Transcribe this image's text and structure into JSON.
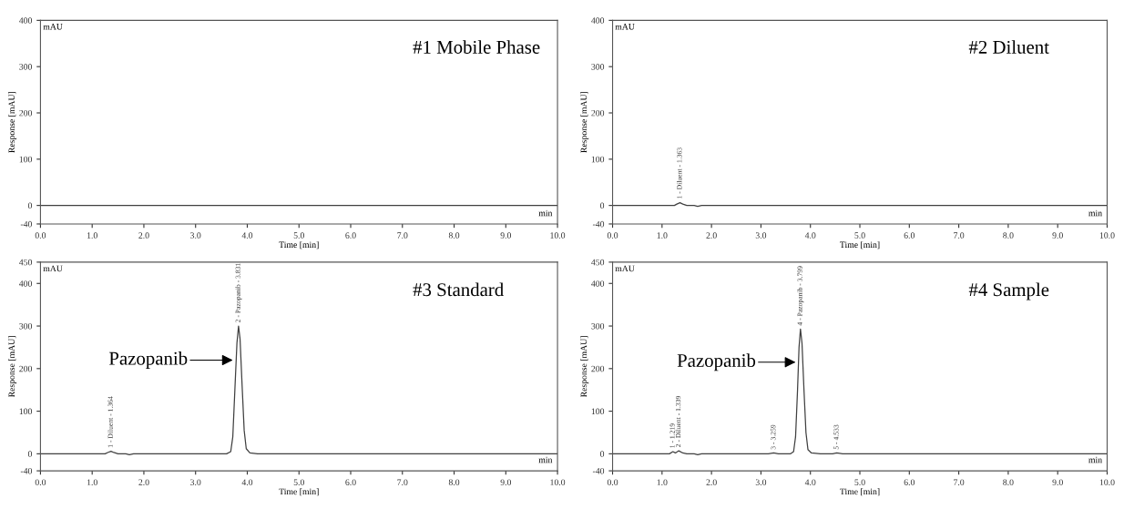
{
  "chart_data": [
    {
      "type": "line",
      "title": "#1 Mobile Phase",
      "xlabel": "Time [min]",
      "ylabel": "Response [mAU]",
      "xlim": [
        0,
        10
      ],
      "ylim": [
        -40,
        400
      ],
      "xticks": [
        {
          "value": 0,
          "label": "0.0"
        },
        {
          "value": 1,
          "label": "1.0"
        },
        {
          "value": 2,
          "label": "2.0"
        },
        {
          "value": 3,
          "label": "3.0"
        },
        {
          "value": 4,
          "label": "4.0"
        },
        {
          "value": 5,
          "label": "5.0"
        },
        {
          "value": 6,
          "label": "6.0"
        },
        {
          "value": 7,
          "label": "7.0"
        },
        {
          "value": 8,
          "label": "8.0"
        },
        {
          "value": 9,
          "label": "9.0"
        },
        {
          "value": 10,
          "label": "10.0"
        }
      ],
      "yticks": [
        -40,
        0,
        100,
        200,
        300,
        400
      ],
      "grid": false,
      "legend": false,
      "series": [
        {
          "color": "#404040",
          "x": [
            0,
            10
          ],
          "values": [
            0,
            0
          ]
        }
      ],
      "annotations": [
        "mAU",
        "min"
      ]
    },
    {
      "type": "line",
      "title": "#2 Diluent",
      "xlabel": "Time [min]",
      "ylabel": "Response [mAU]",
      "xlim": [
        0,
        10
      ],
      "ylim": [
        -40,
        400
      ],
      "xticks": [
        {
          "value": 0,
          "label": "0.0"
        },
        {
          "value": 1,
          "label": "1.0"
        },
        {
          "value": 2,
          "label": "2.0"
        },
        {
          "value": 3,
          "label": "3.0"
        },
        {
          "value": 4,
          "label": "4.0"
        },
        {
          "value": 5,
          "label": "5.0"
        },
        {
          "value": 6,
          "label": "6.0"
        },
        {
          "value": 7,
          "label": "7.0"
        },
        {
          "value": 8,
          "label": "8.0"
        },
        {
          "value": 9,
          "label": "9.0"
        },
        {
          "value": 10,
          "label": "10.0"
        }
      ],
      "yticks": [
        -40,
        0,
        100,
        200,
        300,
        400
      ],
      "grid": false,
      "legend": false,
      "series": [
        {
          "color": "#404040",
          "x": [
            0,
            1.25,
            1.3,
            1.363,
            1.42,
            1.5,
            1.65,
            1.72,
            1.8,
            10
          ],
          "values": [
            0,
            0,
            3,
            6,
            3,
            0,
            0,
            -2,
            0,
            0
          ]
        }
      ],
      "annotations": [
        "mAU",
        "min",
        {
          "text": "1 - Diluent - 1.363",
          "x": 1.363,
          "y": 6
        }
      ]
    },
    {
      "type": "line",
      "title": "#3 Standard",
      "xlabel": "Time [min]",
      "ylabel": "Response [mAU]",
      "xlim": [
        0,
        10
      ],
      "ylim": [
        -40,
        450
      ],
      "xticks": [
        {
          "value": 0,
          "label": "0.0"
        },
        {
          "value": 1,
          "label": "1.0"
        },
        {
          "value": 2,
          "label": "2.0"
        },
        {
          "value": 3,
          "label": "3.0"
        },
        {
          "value": 4,
          "label": "4.0"
        },
        {
          "value": 5,
          "label": "5.0"
        },
        {
          "value": 6,
          "label": "6.0"
        },
        {
          "value": 7,
          "label": "7.0"
        },
        {
          "value": 8,
          "label": "8.0"
        },
        {
          "value": 9,
          "label": "9.0"
        },
        {
          "value": 10,
          "label": "10.0"
        }
      ],
      "yticks": [
        -40,
        0,
        100,
        200,
        300,
        400,
        450
      ],
      "grid": false,
      "legend": false,
      "series": [
        {
          "color": "#404040",
          "x": [
            0,
            1.25,
            1.3,
            1.364,
            1.42,
            1.5,
            1.65,
            1.72,
            1.8,
            3.6,
            3.68,
            3.72,
            3.76,
            3.8,
            3.831,
            3.86,
            3.9,
            3.94,
            3.98,
            4.05,
            4.2,
            10
          ],
          "values": [
            0,
            0,
            3,
            6,
            3,
            0,
            0,
            -2,
            0,
            0,
            5,
            40,
            150,
            260,
            300,
            270,
            160,
            55,
            12,
            2,
            0,
            0
          ]
        }
      ],
      "annotations": [
        "mAU",
        "min",
        {
          "text": "1 - Diluent - 1.364",
          "x": 1.364,
          "y": 6
        },
        {
          "text": "2 - Pazopanib - 3.831",
          "x": 3.831,
          "y": 300
        },
        {
          "text": "Pazopanib",
          "x": 3.72,
          "y": 220
        }
      ]
    },
    {
      "type": "line",
      "title": "#4 Sample",
      "xlabel": "Time [min]",
      "ylabel": "Response [mAU]",
      "xlim": [
        0,
        10
      ],
      "ylim": [
        -40,
        450
      ],
      "xticks": [
        {
          "value": 0,
          "label": "0.0"
        },
        {
          "value": 1,
          "label": "1.0"
        },
        {
          "value": 2,
          "label": "2.0"
        },
        {
          "value": 3,
          "label": "3.0"
        },
        {
          "value": 4,
          "label": "4.0"
        },
        {
          "value": 5,
          "label": "5.0"
        },
        {
          "value": 6,
          "label": "6.0"
        },
        {
          "value": 7,
          "label": "7.0"
        },
        {
          "value": 8,
          "label": "8.0"
        },
        {
          "value": 9,
          "label": "9.0"
        },
        {
          "value": 10,
          "label": "10.0"
        }
      ],
      "yticks": [
        -40,
        0,
        100,
        200,
        300,
        400,
        450
      ],
      "grid": false,
      "legend": false,
      "series": [
        {
          "color": "#404040",
          "x": [
            0,
            1.15,
            1.219,
            1.27,
            1.339,
            1.42,
            1.5,
            1.65,
            1.72,
            1.8,
            3.15,
            3.259,
            3.35,
            3.6,
            3.66,
            3.7,
            3.74,
            3.77,
            3.799,
            3.83,
            3.87,
            3.91,
            3.95,
            4.02,
            4.2,
            4.45,
            4.533,
            4.65,
            10
          ],
          "values": [
            0,
            0,
            5,
            2,
            7,
            2,
            0,
            0,
            -2,
            0,
            0,
            2,
            0,
            0,
            5,
            40,
            150,
            250,
            293,
            260,
            150,
            50,
            10,
            2,
            0,
            0,
            2,
            0,
            0
          ]
        }
      ],
      "annotations": [
        "mAU",
        "min",
        {
          "text": "1 - 1.219",
          "x": 1.219,
          "y": 5
        },
        {
          "text": "2 - Diluent - 1.339",
          "x": 1.339,
          "y": 7
        },
        {
          "text": "3 - 3.259",
          "x": 3.259,
          "y": 2
        },
        {
          "text": "4 - Pazopanib - 3.799",
          "x": 3.799,
          "y": 293
        },
        {
          "text": "5 - 4.533",
          "x": 4.533,
          "y": 2
        },
        {
          "text": "Pazopanib",
          "x": 3.7,
          "y": 215
        }
      ]
    }
  ]
}
